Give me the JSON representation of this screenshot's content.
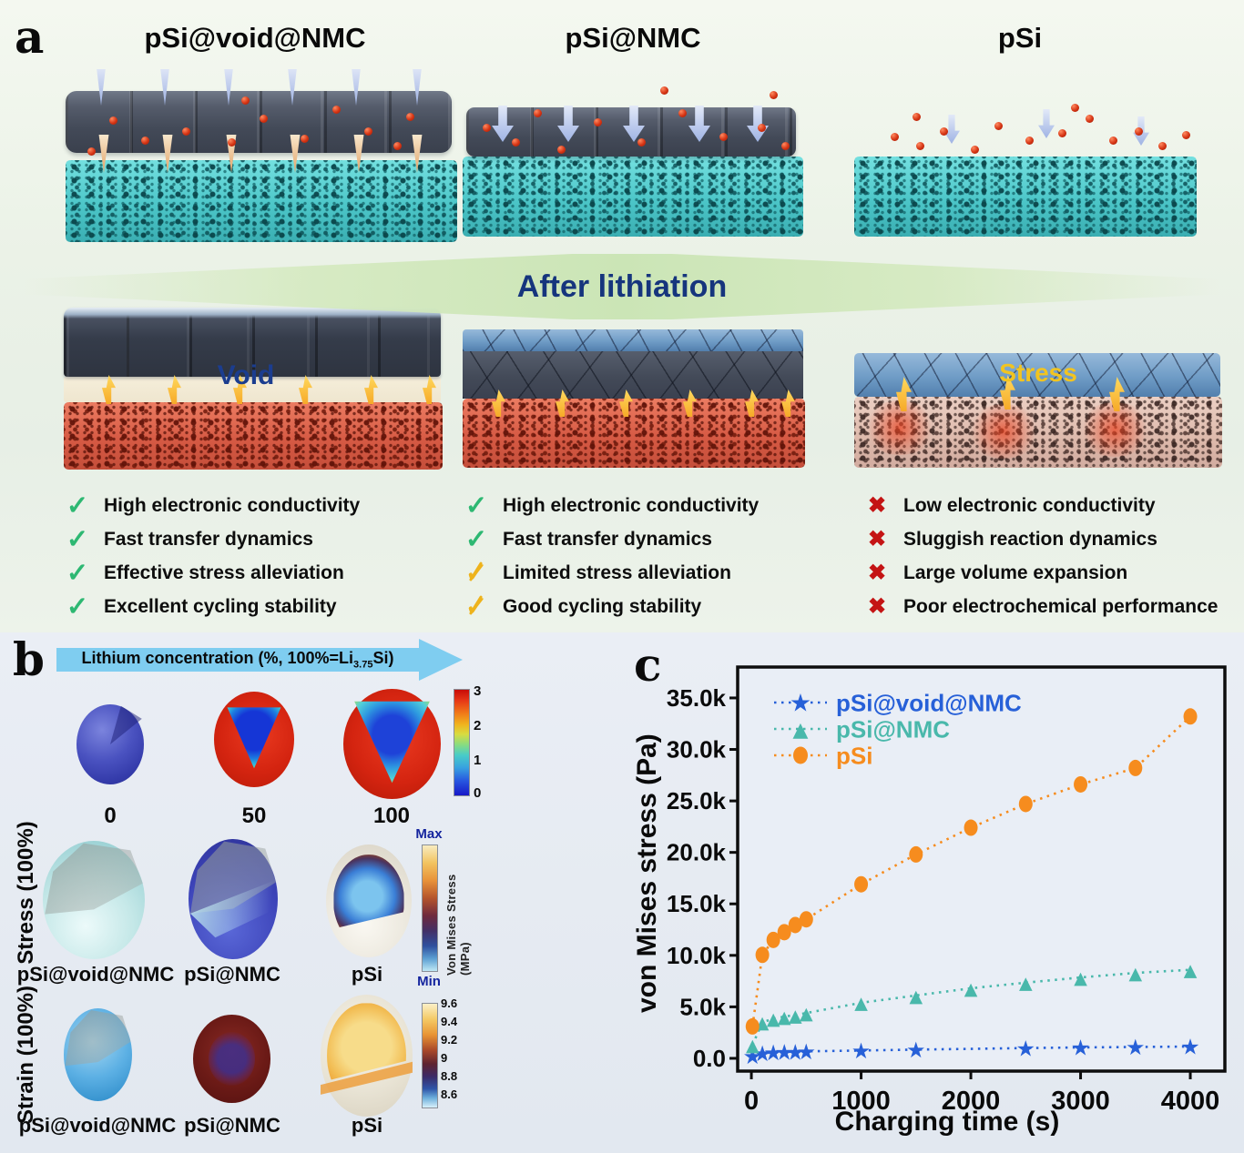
{
  "figure": {
    "panel_a_letter": "a",
    "panel_b_letter": "b",
    "panel_c_letter": "c"
  },
  "panel_a": {
    "columns": [
      {
        "title": "pSi@void@NMC",
        "items": [
          {
            "mark": "check",
            "text": "High electronic conductivity"
          },
          {
            "mark": "check",
            "text": "Fast transfer dynamics"
          },
          {
            "mark": "check",
            "text": "Effective stress alleviation"
          },
          {
            "mark": "check",
            "text": "Excellent cycling stability"
          }
        ]
      },
      {
        "title": "pSi@NMC",
        "items": [
          {
            "mark": "check",
            "text": "High electronic conductivity"
          },
          {
            "mark": "check",
            "text": "Fast transfer dynamics"
          },
          {
            "mark": "warn",
            "text": "Limited stress alleviation"
          },
          {
            "mark": "warn",
            "text": "Good cycling stability"
          }
        ]
      },
      {
        "title": "pSi",
        "items": [
          {
            "mark": "cross",
            "text": "Low electronic conductivity"
          },
          {
            "mark": "cross",
            "text": "Sluggish reaction dynamics"
          },
          {
            "mark": "cross",
            "text": "Large volume expansion"
          },
          {
            "mark": "cross",
            "text": "Poor electrochemical performance"
          }
        ]
      }
    ],
    "after_lithiation_label": "After lithiation",
    "void_label": "Void",
    "stress_label": "Stress",
    "marks": {
      "check": "✓",
      "warn": "✓",
      "cross": "✖"
    },
    "mark_colors": {
      "check": "#2db872",
      "warn": "#eeb31c",
      "cross": "#c41414"
    }
  },
  "panel_b": {
    "arrow_label": {
      "pre": "Lithium concentration (%, 100%=Li",
      "sub": "3.75",
      "post": "Si)"
    },
    "arrow_color": "#7fcdf0",
    "concentration_labels": [
      "0",
      "50",
      "100"
    ],
    "colorbar_concentration": {
      "ticks": [
        "3",
        "2",
        "1",
        "0"
      ]
    },
    "stress_row": {
      "axis_label": "Stress (100%)",
      "sphere_labels": [
        "pSi@void@NMC",
        "pSi@NMC",
        "pSi"
      ],
      "colorbar": {
        "max": "Max",
        "min": "Min",
        "label": "Von Mises Stress (MPa)"
      }
    },
    "strain_row": {
      "axis_label": "Strain (100%)",
      "sphere_labels": [
        "pSi@void@NMC",
        "pSi@NMC",
        "pSi"
      ],
      "colorbar": {
        "ticks": [
          "9.6",
          "9.4",
          "9.2",
          "9",
          "8.8",
          "8.6"
        ]
      }
    }
  },
  "chart_data": {
    "type": "line-scatter",
    "title": "",
    "xlabel": "Charging time (s)",
    "ylabel": "von Mises stress (Pa)",
    "xlim": [
      -125,
      4315
    ],
    "ylim": [
      -1240,
      38000
    ],
    "x_ticks": [
      0,
      1000,
      2000,
      3000,
      4000
    ],
    "y_ticks": [
      0,
      5000,
      10000,
      15000,
      20000,
      25000,
      30000,
      35000
    ],
    "y_tick_labels": [
      "0.0",
      "5.0k",
      "10.0k",
      "15.0k",
      "20.0k",
      "25.0k",
      "30.0k",
      "35.0k"
    ],
    "grid": false,
    "legend_position": "top-left",
    "line_style": "dotted",
    "series": [
      {
        "name": "pSi@void@NMC",
        "color": "#2760d8",
        "marker": "star",
        "x": [
          10,
          100,
          200,
          300,
          400,
          500,
          1000,
          1500,
          2500,
          3000,
          3500,
          4000
        ],
        "y": [
          250,
          500,
          570,
          620,
          650,
          680,
          760,
          850,
          1000,
          1060,
          1100,
          1150
        ]
      },
      {
        "name": "pSi@NMC",
        "color": "#49b8ab",
        "marker": "triangle",
        "x": [
          10,
          100,
          200,
          300,
          400,
          500,
          1000,
          1500,
          2000,
          2500,
          3000,
          3500,
          4000
        ],
        "y": [
          1300,
          3500,
          3850,
          4050,
          4200,
          4400,
          5400,
          6100,
          6800,
          7350,
          7850,
          8300,
          8600
        ]
      },
      {
        "name": "pSi",
        "color": "#f68c1e",
        "marker": "circle",
        "x": [
          10,
          100,
          200,
          300,
          400,
          500,
          1000,
          1500,
          2000,
          2500,
          3000,
          3500,
          4000
        ],
        "y": [
          3100,
          10050,
          11500,
          12250,
          12950,
          13500,
          16900,
          19800,
          22400,
          24700,
          26600,
          28200,
          33200
        ]
      }
    ]
  }
}
